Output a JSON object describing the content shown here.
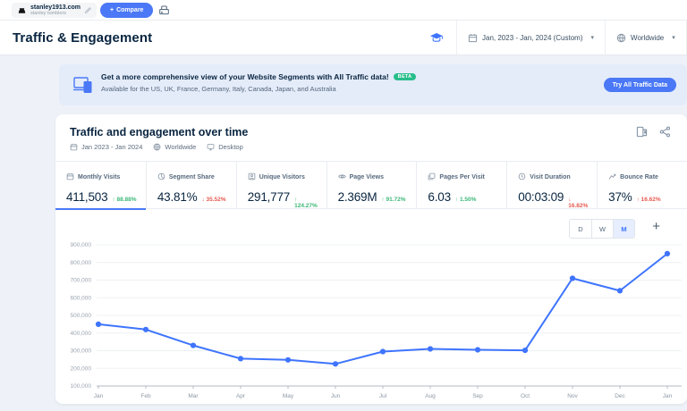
{
  "topbar": {
    "site": {
      "domain": "stanley1913.com",
      "descriptor": "stanley tumblers"
    },
    "compare_label": "Compare",
    "plus_glyph": "+"
  },
  "header": {
    "title": "Traffic & Engagement",
    "date_range": "Jan, 2023 - Jan, 2024 (Custom)",
    "region": "Worldwide"
  },
  "banner": {
    "title": "Get a more comprehensive view of your Website Segments with All Traffic data!",
    "beta": "BETA",
    "subtitle": "Available for the US, UK, France, Germany, Italy, Canada, Japan, and Australia",
    "cta": "Try All Traffic Data"
  },
  "card": {
    "title": "Traffic and engagement over time",
    "filters": {
      "date": "Jan 2023 - Jan 2024",
      "region": "Worldwide",
      "device": "Desktop"
    }
  },
  "metrics": [
    {
      "label": "Monthly Visits",
      "icon": "calendar-icon",
      "value": "411,503",
      "arrow": "↑",
      "change": "88.88%",
      "trend": "positive",
      "selected": true
    },
    {
      "label": "Segment Share",
      "icon": "pie-icon",
      "value": "43.81%",
      "arrow": "↓",
      "change": "35.52%",
      "trend": "negative",
      "selected": false
    },
    {
      "label": "Unique Visitors",
      "icon": "user-icon",
      "value": "291,777",
      "arrow": "↑",
      "change": "124.27%",
      "trend": "positive",
      "selected": false
    },
    {
      "label": "Page Views",
      "icon": "eye-icon",
      "value": "2.369M",
      "arrow": "↑",
      "change": "91.72%",
      "trend": "positive",
      "selected": false
    },
    {
      "label": "Pages Per Visit",
      "icon": "pages-icon",
      "value": "6.03",
      "arrow": "↑",
      "change": "1.50%",
      "trend": "positive",
      "selected": false
    },
    {
      "label": "Visit Duration",
      "icon": "clock-icon",
      "value": "00:03:09",
      "arrow": "↓",
      "change": "16.82%",
      "trend": "negative",
      "selected": false
    },
    {
      "label": "Bounce Rate",
      "icon": "bounce-icon",
      "value": "37%",
      "arrow": "↑",
      "change": "16.62%",
      "trend": "negative",
      "selected": false
    }
  ],
  "granularity": {
    "options": [
      "D",
      "W",
      "M"
    ],
    "selected": "M"
  },
  "chart_data": {
    "type": "line",
    "title": "Traffic and engagement over time",
    "x": [
      "Jan",
      "Feb",
      "Mar",
      "Apr",
      "May",
      "Jun",
      "Jul",
      "Aug",
      "Sep",
      "Oct",
      "Nov",
      "Dec",
      "Jan"
    ],
    "series": [
      {
        "name": "Monthly Visits",
        "values": [
          450000,
          420000,
          330000,
          255000,
          248000,
          225000,
          295000,
          310000,
          305000,
          302000,
          710000,
          640000,
          850000
        ]
      }
    ],
    "ylim": [
      100000,
      900000
    ],
    "ytick_step": 100000,
    "grid": true,
    "legend": "none",
    "line_color": "#3e74fe"
  },
  "colors": {
    "accent_blue": "#4a78f6",
    "line_blue": "#3e74fe",
    "positive_green": "#3cb878",
    "negative_red": "#e8594f",
    "navy_text": "#092540",
    "banner_bg": "#e4ecfa",
    "page_bg": "#eef2f8"
  }
}
